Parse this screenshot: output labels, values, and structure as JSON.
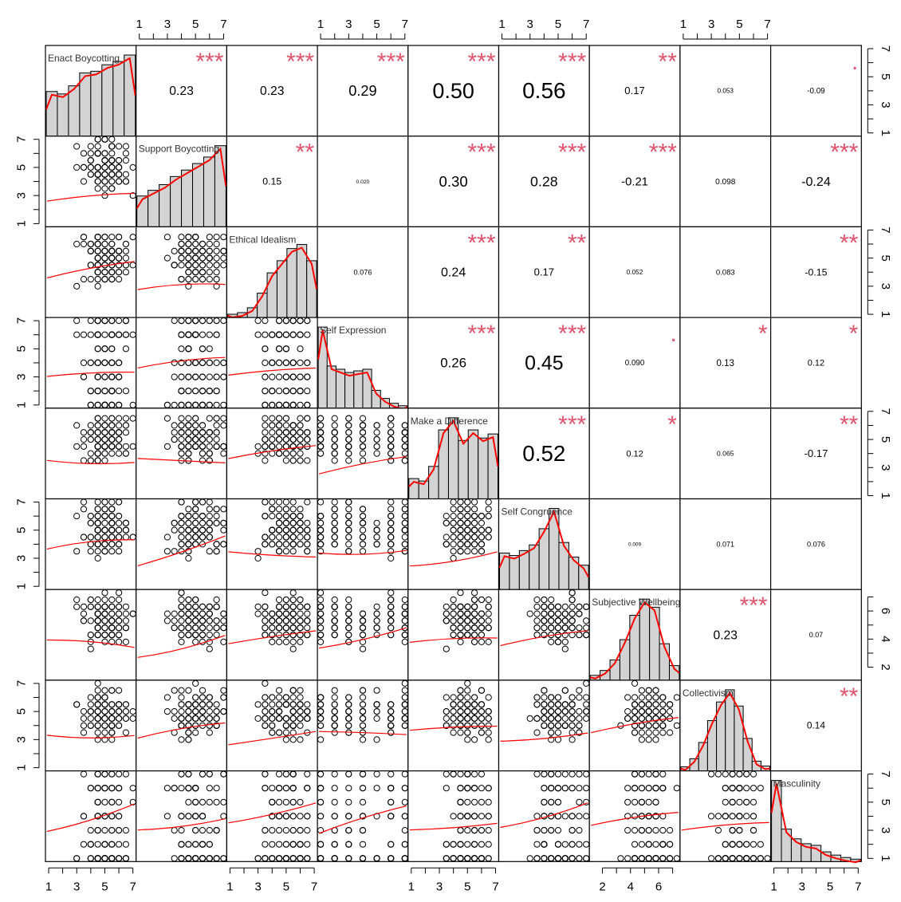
{
  "chart_data": {
    "type": "scatter-matrix",
    "variables": [
      {
        "name": "Enact Boycotting",
        "range": [
          1,
          7
        ]
      },
      {
        "name": "Support Boycotting",
        "range": [
          1,
          7
        ]
      },
      {
        "name": "Ethical Idealism",
        "range": [
          1,
          7
        ]
      },
      {
        "name": "Self Expression",
        "range": [
          1,
          7
        ]
      },
      {
        "name": "Make a Difference",
        "range": [
          1,
          7
        ]
      },
      {
        "name": "Self Congruence",
        "range": [
          1,
          7
        ]
      },
      {
        "name": "Subjective Wellbeing",
        "range": [
          1.3,
          7.3
        ]
      },
      {
        "name": "Collectivism",
        "range": [
          1,
          7
        ]
      },
      {
        "name": "Masculinity",
        "range": [
          1,
          7
        ]
      }
    ],
    "axes": {
      "top": [
        {
          "var": 1,
          "ticks": [
            "1",
            "3",
            "5",
            "7"
          ]
        },
        {
          "var": 3,
          "ticks": [
            "1",
            "3",
            "5",
            "7"
          ]
        },
        {
          "var": 5,
          "ticks": [
            "1",
            "3",
            "5",
            "7"
          ]
        },
        {
          "var": 7,
          "ticks": [
            "1",
            "3",
            "5",
            "7"
          ]
        }
      ],
      "bottom": [
        {
          "var": 0,
          "ticks": [
            "1",
            "3",
            "5",
            "7"
          ]
        },
        {
          "var": 2,
          "ticks": [
            "1",
            "3",
            "5",
            "7"
          ]
        },
        {
          "var": 4,
          "ticks": [
            "1",
            "3",
            "5",
            "7"
          ]
        },
        {
          "var": 6,
          "ticks": [
            "2",
            "4",
            "6"
          ]
        },
        {
          "var": 8,
          "ticks": [
            "1",
            "3",
            "5",
            "7"
          ]
        }
      ],
      "left": [
        {
          "var": 1,
          "ticks": [
            "1",
            "3",
            "5",
            "7"
          ]
        },
        {
          "var": 3,
          "ticks": [
            "1",
            "3",
            "5",
            "7"
          ]
        },
        {
          "var": 5,
          "ticks": [
            "1",
            "3",
            "5",
            "7"
          ]
        },
        {
          "var": 7,
          "ticks": [
            "1",
            "3",
            "5",
            "7"
          ]
        }
      ],
      "right": [
        {
          "var": 0,
          "ticks": [
            "1",
            "3",
            "5",
            "7"
          ]
        },
        {
          "var": 2,
          "ticks": [
            "1",
            "3",
            "5",
            "7"
          ]
        },
        {
          "var": 4,
          "ticks": [
            "1",
            "3",
            "5",
            "7"
          ]
        },
        {
          "var": 6,
          "ticks": [
            "2",
            "4",
            "6"
          ]
        },
        {
          "var": 8,
          "ticks": [
            "1",
            "3",
            "5",
            "7"
          ]
        }
      ]
    },
    "correlations": [
      {
        "row": 0,
        "col": 1,
        "r": "0.23",
        "stars": "***"
      },
      {
        "row": 0,
        "col": 2,
        "r": "0.23",
        "stars": "***"
      },
      {
        "row": 0,
        "col": 3,
        "r": "0.29",
        "stars": "***"
      },
      {
        "row": 0,
        "col": 4,
        "r": "0.50",
        "stars": "***"
      },
      {
        "row": 0,
        "col": 5,
        "r": "0.56",
        "stars": "***"
      },
      {
        "row": 0,
        "col": 6,
        "r": "0.17",
        "stars": "**"
      },
      {
        "row": 0,
        "col": 7,
        "r": "0.053",
        "stars": ""
      },
      {
        "row": 0,
        "col": 8,
        "r": "-0.09",
        "stars": "."
      },
      {
        "row": 1,
        "col": 2,
        "r": "0.15",
        "stars": "**"
      },
      {
        "row": 1,
        "col": 3,
        "r": "0.020",
        "stars": ""
      },
      {
        "row": 1,
        "col": 4,
        "r": "0.30",
        "stars": "***"
      },
      {
        "row": 1,
        "col": 5,
        "r": "0.28",
        "stars": "***"
      },
      {
        "row": 1,
        "col": 6,
        "r": "-0.21",
        "stars": "***"
      },
      {
        "row": 1,
        "col": 7,
        "r": "0.098",
        "stars": ""
      },
      {
        "row": 1,
        "col": 8,
        "r": "-0.24",
        "stars": "***"
      },
      {
        "row": 2,
        "col": 3,
        "r": "0.076",
        "stars": ""
      },
      {
        "row": 2,
        "col": 4,
        "r": "0.24",
        "stars": "***"
      },
      {
        "row": 2,
        "col": 5,
        "r": "0.17",
        "stars": "**"
      },
      {
        "row": 2,
        "col": 6,
        "r": "0.052",
        "stars": ""
      },
      {
        "row": 2,
        "col": 7,
        "r": "0.083",
        "stars": ""
      },
      {
        "row": 2,
        "col": 8,
        "r": "-0.15",
        "stars": "**"
      },
      {
        "row": 3,
        "col": 4,
        "r": "0.26",
        "stars": "***"
      },
      {
        "row": 3,
        "col": 5,
        "r": "0.45",
        "stars": "***"
      },
      {
        "row": 3,
        "col": 6,
        "r": "0.090",
        "stars": "."
      },
      {
        "row": 3,
        "col": 7,
        "r": "0.13",
        "stars": "*"
      },
      {
        "row": 3,
        "col": 8,
        "r": "0.12",
        "stars": "*"
      },
      {
        "row": 4,
        "col": 5,
        "r": "0.52",
        "stars": "***"
      },
      {
        "row": 4,
        "col": 6,
        "r": "0.12",
        "stars": "*"
      },
      {
        "row": 4,
        "col": 7,
        "r": "0.065",
        "stars": ""
      },
      {
        "row": 4,
        "col": 8,
        "r": "-0.17",
        "stars": "**"
      },
      {
        "row": 5,
        "col": 6,
        "r": "0.009",
        "stars": ""
      },
      {
        "row": 5,
        "col": 7,
        "r": "0.071",
        "stars": ""
      },
      {
        "row": 5,
        "col": 8,
        "r": "0.076",
        "stars": ""
      },
      {
        "row": 6,
        "col": 7,
        "r": "0.23",
        "stars": "***"
      },
      {
        "row": 6,
        "col": 8,
        "r": "0.07",
        "stars": ""
      },
      {
        "row": 7,
        "col": 8,
        "r": "0.14",
        "stars": "**"
      }
    ],
    "histograms": [
      [
        0.55,
        0.52,
        0.62,
        0.78,
        0.8,
        0.88,
        0.92,
        1.0
      ],
      [
        0.38,
        0.45,
        0.52,
        0.62,
        0.7,
        0.78,
        0.86,
        1.0
      ],
      [
        0.04,
        0.06,
        0.12,
        0.3,
        0.55,
        0.7,
        0.85,
        0.9,
        0.7
      ],
      [
        1.0,
        0.52,
        0.48,
        0.44,
        0.46,
        0.48,
        0.22,
        0.12,
        0.06,
        0.03
      ],
      [
        0.25,
        0.22,
        0.4,
        0.85,
        1.0,
        0.72,
        0.85,
        0.75,
        0.8
      ],
      [
        0.45,
        0.42,
        0.48,
        0.55,
        0.75,
        1.0,
        0.58,
        0.4,
        0.3
      ],
      [
        0.06,
        0.12,
        0.25,
        0.5,
        0.8,
        1.0,
        0.9,
        0.45,
        0.18
      ],
      [
        0.05,
        0.15,
        0.35,
        0.62,
        0.85,
        1.0,
        0.8,
        0.4,
        0.12,
        0.06
      ],
      [
        1.0,
        0.4,
        0.28,
        0.22,
        0.2,
        0.12,
        0.08,
        0.05,
        0.03
      ]
    ],
    "colors": {
      "points": "#000000",
      "smooth": "#FF0000",
      "stars": "#DF536B",
      "bar_fill": "#D3D3D3"
    }
  }
}
